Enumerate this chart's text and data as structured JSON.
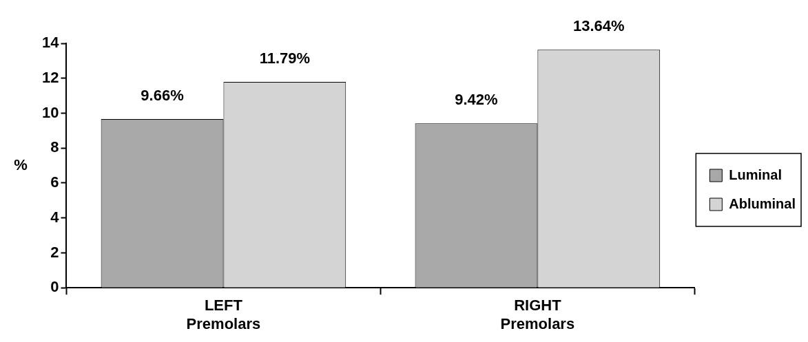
{
  "chart_data": {
    "type": "bar",
    "ylabel": "%",
    "categories": [
      "LEFT\nPremolars",
      "RIGHT\nPremolars"
    ],
    "series": [
      {
        "name": "Luminal",
        "color": "#a8a8a8",
        "values": [
          9.66,
          9.42
        ],
        "value_labels": [
          "9.66%",
          "9.42%"
        ]
      },
      {
        "name": "Abluminal",
        "color": "#d4d4d4",
        "values": [
          11.79,
          13.64
        ],
        "value_labels": [
          "11.79%",
          "13.64%"
        ]
      }
    ],
    "ylim": [
      0,
      14
    ],
    "yticks": [
      0,
      2,
      4,
      6,
      8,
      10,
      12,
      14
    ],
    "grid": false,
    "legend": "right"
  }
}
